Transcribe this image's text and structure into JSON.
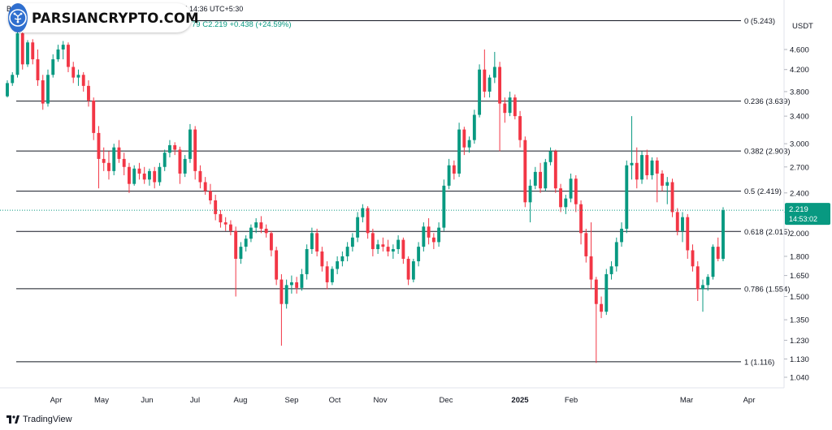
{
  "header": {
    "publish_text": "Be…           nto1 published on TradingView.com, Mar 17, 2025 14:36 UTC+5:30",
    "ohlc_text": "79  C2.219  +0.438 (+24.59%)",
    "watermark": "PARSIANCRYPTO.COM",
    "branding": "TradingView"
  },
  "colors": {
    "up": "#089981",
    "down": "#f23645",
    "fib_line": "#131722",
    "price_tag": "#089981"
  },
  "chart_data": {
    "type": "candlestick",
    "y_axis_unit": "USDT",
    "y_scale": "log",
    "ylim": [
      0.98,
      5.3
    ],
    "y_ticks": [
      1.04,
      1.13,
      1.23,
      1.35,
      1.5,
      1.65,
      1.8,
      2.0,
      2.2,
      2.4,
      2.7,
      3.0,
      3.4,
      3.8,
      4.2,
      4.6
    ],
    "x_ticks": [
      "Apr",
      "May",
      "Jun",
      "Jul",
      "Aug",
      "Sep",
      "Oct",
      "Nov",
      "Dec",
      "2025",
      "Feb",
      "Mar",
      "Apr"
    ],
    "fib_levels": [
      {
        "ratio": "0",
        "value": 5.243,
        "label": "0 (5.243)"
      },
      {
        "ratio": "0.236",
        "value": 3.639,
        "label": "0.236 (3.639)"
      },
      {
        "ratio": "0.382",
        "value": 2.903,
        "label": "0.382 (2.903)"
      },
      {
        "ratio": "0.5",
        "value": 2.419,
        "label": "0.5 (2.419)"
      },
      {
        "ratio": "0.618",
        "value": 2.015,
        "label": "0.618 (2.015)"
      },
      {
        "ratio": "0.786",
        "value": 1.554,
        "label": "0.786 (1.554)"
      },
      {
        "ratio": "1",
        "value": 1.116,
        "label": "1 (1.116)"
      }
    ],
    "last_price": {
      "value": 2.219,
      "label": "2.219",
      "countdown": "14:53:02"
    },
    "series": [
      {
        "o": 3.72,
        "h": 4.0,
        "l": 3.7,
        "c": 3.95
      },
      {
        "o": 3.95,
        "h": 4.15,
        "l": 3.9,
        "c": 4.1
      },
      {
        "o": 4.1,
        "h": 5.24,
        "l": 4.05,
        "c": 4.95
      },
      {
        "o": 4.95,
        "h": 5.0,
        "l": 4.2,
        "c": 4.3
      },
      {
        "o": 4.3,
        "h": 4.8,
        "l": 4.25,
        "c": 4.75
      },
      {
        "o": 4.75,
        "h": 4.82,
        "l": 4.3,
        "c": 4.4
      },
      {
        "o": 4.4,
        "h": 4.6,
        "l": 3.9,
        "c": 4.0
      },
      {
        "o": 4.0,
        "h": 4.1,
        "l": 3.5,
        "c": 3.6
      },
      {
        "o": 3.6,
        "h": 4.2,
        "l": 3.55,
        "c": 4.1
      },
      {
        "o": 4.1,
        "h": 4.5,
        "l": 4.05,
        "c": 4.4
      },
      {
        "o": 4.4,
        "h": 4.7,
        "l": 4.35,
        "c": 4.6
      },
      {
        "o": 4.6,
        "h": 4.78,
        "l": 4.4,
        "c": 4.7
      },
      {
        "o": 4.7,
        "h": 4.75,
        "l": 4.15,
        "c": 4.25
      },
      {
        "o": 4.25,
        "h": 4.35,
        "l": 3.95,
        "c": 4.05
      },
      {
        "o": 4.05,
        "h": 4.2,
        "l": 3.9,
        "c": 4.1
      },
      {
        "o": 4.1,
        "h": 4.15,
        "l": 3.8,
        "c": 3.9
      },
      {
        "o": 3.9,
        "h": 4.0,
        "l": 3.55,
        "c": 3.65
      },
      {
        "o": 3.65,
        "h": 3.7,
        "l": 3.05,
        "c": 3.15
      },
      {
        "o": 3.15,
        "h": 3.25,
        "l": 2.45,
        "c": 2.8
      },
      {
        "o": 2.8,
        "h": 2.95,
        "l": 2.65,
        "c": 2.75
      },
      {
        "o": 2.75,
        "h": 2.9,
        "l": 2.55,
        "c": 2.65
      },
      {
        "o": 2.65,
        "h": 3.0,
        "l": 2.6,
        "c": 2.95
      },
      {
        "o": 2.95,
        "h": 3.05,
        "l": 2.75,
        "c": 2.8
      },
      {
        "o": 2.8,
        "h": 2.88,
        "l": 2.6,
        "c": 2.7
      },
      {
        "o": 2.7,
        "h": 2.75,
        "l": 2.4,
        "c": 2.5
      },
      {
        "o": 2.5,
        "h": 2.72,
        "l": 2.48,
        "c": 2.68
      },
      {
        "o": 2.68,
        "h": 2.75,
        "l": 2.55,
        "c": 2.62
      },
      {
        "o": 2.62,
        "h": 2.7,
        "l": 2.5,
        "c": 2.55
      },
      {
        "o": 2.55,
        "h": 2.68,
        "l": 2.48,
        "c": 2.65
      },
      {
        "o": 2.65,
        "h": 2.7,
        "l": 2.45,
        "c": 2.52
      },
      {
        "o": 2.52,
        "h": 2.75,
        "l": 2.48,
        "c": 2.7
      },
      {
        "o": 2.7,
        "h": 2.92,
        "l": 2.65,
        "c": 2.88
      },
      {
        "o": 2.88,
        "h": 3.05,
        "l": 2.82,
        "c": 2.98
      },
      {
        "o": 2.98,
        "h": 3.02,
        "l": 2.85,
        "c": 2.92
      },
      {
        "o": 2.92,
        "h": 2.96,
        "l": 2.5,
        "c": 2.62
      },
      {
        "o": 2.62,
        "h": 2.85,
        "l": 2.58,
        "c": 2.8
      },
      {
        "o": 2.8,
        "h": 3.28,
        "l": 2.75,
        "c": 3.2
      },
      {
        "o": 3.2,
        "h": 3.25,
        "l": 2.55,
        "c": 2.65
      },
      {
        "o": 2.65,
        "h": 2.72,
        "l": 2.45,
        "c": 2.52
      },
      {
        "o": 2.52,
        "h": 2.58,
        "l": 2.38,
        "c": 2.42
      },
      {
        "o": 2.42,
        "h": 2.5,
        "l": 2.28,
        "c": 2.32
      },
      {
        "o": 2.32,
        "h": 2.38,
        "l": 2.12,
        "c": 2.18
      },
      {
        "o": 2.18,
        "h": 2.22,
        "l": 2.05,
        "c": 2.1
      },
      {
        "o": 2.1,
        "h": 2.15,
        "l": 2.02,
        "c": 2.08
      },
      {
        "o": 2.08,
        "h": 2.12,
        "l": 1.98,
        "c": 2.02
      },
      {
        "o": 2.02,
        "h": 2.06,
        "l": 1.5,
        "c": 1.78
      },
      {
        "o": 1.78,
        "h": 1.92,
        "l": 1.74,
        "c": 1.88
      },
      {
        "o": 1.88,
        "h": 1.98,
        "l": 1.84,
        "c": 1.95
      },
      {
        "o": 1.95,
        "h": 2.08,
        "l": 1.92,
        "c": 2.05
      },
      {
        "o": 2.05,
        "h": 2.14,
        "l": 2.0,
        "c": 2.1
      },
      {
        "o": 2.1,
        "h": 2.16,
        "l": 2.0,
        "c": 2.04
      },
      {
        "o": 2.04,
        "h": 2.08,
        "l": 1.96,
        "c": 2.0
      },
      {
        "o": 2.0,
        "h": 2.02,
        "l": 1.8,
        "c": 1.85
      },
      {
        "o": 1.85,
        "h": 1.88,
        "l": 1.58,
        "c": 1.62
      },
      {
        "o": 1.62,
        "h": 1.66,
        "l": 1.2,
        "c": 1.45
      },
      {
        "o": 1.45,
        "h": 1.62,
        "l": 1.42,
        "c": 1.58
      },
      {
        "o": 1.58,
        "h": 1.65,
        "l": 1.52,
        "c": 1.6
      },
      {
        "o": 1.6,
        "h": 1.64,
        "l": 1.52,
        "c": 1.56
      },
      {
        "o": 1.56,
        "h": 1.7,
        "l": 1.54,
        "c": 1.66
      },
      {
        "o": 1.66,
        "h": 1.9,
        "l": 1.62,
        "c": 1.86
      },
      {
        "o": 1.86,
        "h": 2.05,
        "l": 1.82,
        "c": 2.0
      },
      {
        "o": 2.0,
        "h": 2.04,
        "l": 1.8,
        "c": 1.84
      },
      {
        "o": 1.84,
        "h": 1.88,
        "l": 1.68,
        "c": 1.72
      },
      {
        "o": 1.72,
        "h": 1.76,
        "l": 1.55,
        "c": 1.6
      },
      {
        "o": 1.6,
        "h": 1.72,
        "l": 1.58,
        "c": 1.7
      },
      {
        "o": 1.7,
        "h": 1.8,
        "l": 1.66,
        "c": 1.76
      },
      {
        "o": 1.76,
        "h": 1.84,
        "l": 1.72,
        "c": 1.8
      },
      {
        "o": 1.8,
        "h": 1.92,
        "l": 1.76,
        "c": 1.88
      },
      {
        "o": 1.88,
        "h": 2.0,
        "l": 1.84,
        "c": 1.96
      },
      {
        "o": 1.96,
        "h": 2.2,
        "l": 1.92,
        "c": 2.15
      },
      {
        "o": 2.15,
        "h": 2.28,
        "l": 2.1,
        "c": 2.24
      },
      {
        "o": 2.24,
        "h": 2.26,
        "l": 1.95,
        "c": 2.0
      },
      {
        "o": 2.0,
        "h": 2.04,
        "l": 1.8,
        "c": 1.86
      },
      {
        "o": 1.86,
        "h": 1.94,
        "l": 1.82,
        "c": 1.9
      },
      {
        "o": 1.9,
        "h": 1.96,
        "l": 1.84,
        "c": 1.88
      },
      {
        "o": 1.88,
        "h": 1.94,
        "l": 1.8,
        "c": 1.84
      },
      {
        "o": 1.84,
        "h": 1.9,
        "l": 1.78,
        "c": 1.86
      },
      {
        "o": 1.86,
        "h": 1.98,
        "l": 1.82,
        "c": 1.94
      },
      {
        "o": 1.94,
        "h": 1.96,
        "l": 1.74,
        "c": 1.78
      },
      {
        "o": 1.78,
        "h": 1.8,
        "l": 1.58,
        "c": 1.62
      },
      {
        "o": 1.62,
        "h": 1.78,
        "l": 1.6,
        "c": 1.76
      },
      {
        "o": 1.76,
        "h": 1.92,
        "l": 1.72,
        "c": 1.88
      },
      {
        "o": 1.88,
        "h": 2.1,
        "l": 1.84,
        "c": 2.06
      },
      {
        "o": 2.06,
        "h": 2.14,
        "l": 1.9,
        "c": 1.96
      },
      {
        "o": 1.96,
        "h": 2.0,
        "l": 1.86,
        "c": 1.92
      },
      {
        "o": 1.92,
        "h": 2.1,
        "l": 1.88,
        "c": 2.05
      },
      {
        "o": 2.05,
        "h": 2.55,
        "l": 2.02,
        "c": 2.48
      },
      {
        "o": 2.48,
        "h": 2.8,
        "l": 2.44,
        "c": 2.72
      },
      {
        "o": 2.72,
        "h": 2.78,
        "l": 2.55,
        "c": 2.62
      },
      {
        "o": 2.62,
        "h": 3.3,
        "l": 2.58,
        "c": 3.2
      },
      {
        "o": 3.2,
        "h": 3.24,
        "l": 2.85,
        "c": 2.95
      },
      {
        "o": 2.95,
        "h": 3.1,
        "l": 2.88,
        "c": 3.05
      },
      {
        "o": 3.05,
        "h": 3.5,
        "l": 3.0,
        "c": 3.42
      },
      {
        "o": 3.42,
        "h": 4.3,
        "l": 3.38,
        "c": 4.2
      },
      {
        "o": 4.2,
        "h": 4.6,
        "l": 3.7,
        "c": 3.8
      },
      {
        "o": 3.8,
        "h": 4.1,
        "l": 3.7,
        "c": 4.05
      },
      {
        "o": 4.05,
        "h": 4.55,
        "l": 3.95,
        "c": 4.25
      },
      {
        "o": 4.25,
        "h": 4.35,
        "l": 2.9,
        "c": 3.6
      },
      {
        "o": 3.6,
        "h": 3.7,
        "l": 3.3,
        "c": 3.45
      },
      {
        "o": 3.45,
        "h": 3.8,
        "l": 3.4,
        "c": 3.7
      },
      {
        "o": 3.7,
        "h": 3.75,
        "l": 3.35,
        "c": 3.4
      },
      {
        "o": 3.4,
        "h": 3.48,
        "l": 2.95,
        "c": 3.05
      },
      {
        "o": 3.05,
        "h": 3.1,
        "l": 2.25,
        "c": 2.3
      },
      {
        "o": 2.3,
        "h": 2.55,
        "l": 2.1,
        "c": 2.48
      },
      {
        "o": 2.48,
        "h": 2.7,
        "l": 2.44,
        "c": 2.64
      },
      {
        "o": 2.64,
        "h": 2.75,
        "l": 2.4,
        "c": 2.45
      },
      {
        "o": 2.45,
        "h": 2.8,
        "l": 2.42,
        "c": 2.76
      },
      {
        "o": 2.76,
        "h": 2.95,
        "l": 2.72,
        "c": 2.9
      },
      {
        "o": 2.9,
        "h": 2.92,
        "l": 2.4,
        "c": 2.45
      },
      {
        "o": 2.45,
        "h": 2.5,
        "l": 2.2,
        "c": 2.25
      },
      {
        "o": 2.25,
        "h": 2.38,
        "l": 2.18,
        "c": 2.34
      },
      {
        "o": 2.34,
        "h": 2.62,
        "l": 2.3,
        "c": 2.56
      },
      {
        "o": 2.56,
        "h": 2.6,
        "l": 2.2,
        "c": 2.28
      },
      {
        "o": 2.28,
        "h": 2.32,
        "l": 1.9,
        "c": 2.0
      },
      {
        "o": 2.0,
        "h": 2.04,
        "l": 1.75,
        "c": 1.8
      },
      {
        "o": 1.8,
        "h": 2.1,
        "l": 1.55,
        "c": 1.62
      },
      {
        "o": 1.62,
        "h": 1.64,
        "l": 1.11,
        "c": 1.45
      },
      {
        "o": 1.45,
        "h": 1.5,
        "l": 1.36,
        "c": 1.4
      },
      {
        "o": 1.4,
        "h": 1.7,
        "l": 1.38,
        "c": 1.66
      },
      {
        "o": 1.66,
        "h": 1.76,
        "l": 1.62,
        "c": 1.72
      },
      {
        "o": 1.72,
        "h": 1.96,
        "l": 1.68,
        "c": 1.92
      },
      {
        "o": 1.92,
        "h": 2.1,
        "l": 1.88,
        "c": 2.04
      },
      {
        "o": 2.04,
        "h": 2.78,
        "l": 2.0,
        "c": 2.72
      },
      {
        "o": 2.72,
        "h": 3.4,
        "l": 2.55,
        "c": 2.75
      },
      {
        "o": 2.75,
        "h": 2.95,
        "l": 2.45,
        "c": 2.55
      },
      {
        "o": 2.55,
        "h": 2.9,
        "l": 2.5,
        "c": 2.85
      },
      {
        "o": 2.85,
        "h": 2.92,
        "l": 2.55,
        "c": 2.6
      },
      {
        "o": 2.6,
        "h": 2.82,
        "l": 2.55,
        "c": 2.78
      },
      {
        "o": 2.78,
        "h": 2.82,
        "l": 2.3,
        "c": 2.62
      },
      {
        "o": 2.62,
        "h": 2.66,
        "l": 2.42,
        "c": 2.48
      },
      {
        "o": 2.48,
        "h": 2.58,
        "l": 2.28,
        "c": 2.52
      },
      {
        "o": 2.52,
        "h": 2.56,
        "l": 2.15,
        "c": 2.2
      },
      {
        "o": 2.2,
        "h": 2.24,
        "l": 1.98,
        "c": 2.02
      },
      {
        "o": 2.02,
        "h": 2.2,
        "l": 1.92,
        "c": 2.15
      },
      {
        "o": 2.15,
        "h": 2.18,
        "l": 1.78,
        "c": 1.85
      },
      {
        "o": 1.85,
        "h": 1.9,
        "l": 1.68,
        "c": 1.72
      },
      {
        "o": 1.72,
        "h": 1.76,
        "l": 1.47,
        "c": 1.55
      },
      {
        "o": 1.55,
        "h": 1.62,
        "l": 1.4,
        "c": 1.58
      },
      {
        "o": 1.58,
        "h": 1.66,
        "l": 1.54,
        "c": 1.64
      },
      {
        "o": 1.64,
        "h": 1.9,
        "l": 1.62,
        "c": 1.88
      },
      {
        "o": 1.88,
        "h": 1.96,
        "l": 1.76,
        "c": 1.78
      },
      {
        "o": 1.78,
        "h": 2.25,
        "l": 1.76,
        "c": 2.219
      }
    ]
  }
}
